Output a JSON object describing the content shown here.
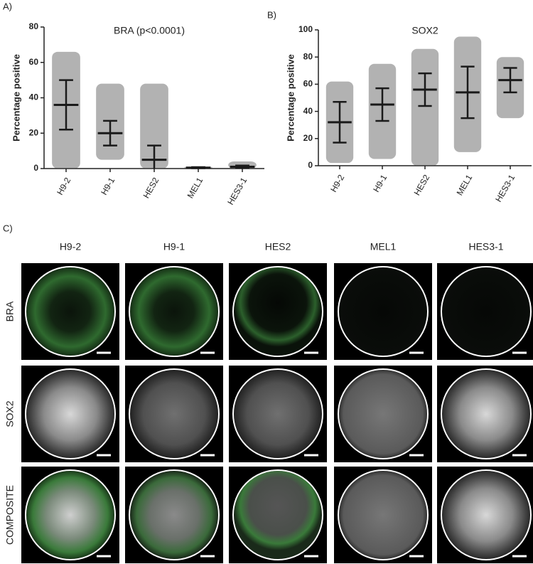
{
  "panels": {
    "a": "A)",
    "b": "B)",
    "c": "C)"
  },
  "chart_data": [
    {
      "type": "dot_plot",
      "title": "BRA (p<0.0001)",
      "y_label": "Percentage positive",
      "categories": [
        "H9-2",
        "H9-1",
        "HES2",
        "MEL1",
        "HES3-1"
      ],
      "values": [
        36,
        20,
        5,
        0.5,
        1
      ],
      "errors": [
        14,
        7,
        8,
        0.3,
        0.7
      ],
      "min": [
        0,
        5,
        0,
        0,
        0
      ],
      "max": [
        66,
        48,
        48,
        1,
        4
      ],
      "color": "#1a1a1a",
      "ylim": [
        0,
        80
      ],
      "yticks": [
        0,
        20,
        40,
        60,
        80
      ]
    },
    {
      "type": "dot_plot",
      "title": "SOX2",
      "y_label": "Percentage positive",
      "categories": [
        "H9-2",
        "H9-1",
        "HES2",
        "MEL1",
        "HES3-1"
      ],
      "values": [
        32,
        45,
        56,
        54,
        63
      ],
      "errors": [
        15,
        12,
        12,
        19,
        9
      ],
      "min": [
        2,
        5,
        0,
        10,
        35
      ],
      "max": [
        62,
        75,
        86,
        95,
        80
      ],
      "color": "#1a1a1a",
      "ylim": [
        0,
        100
      ],
      "yticks": [
        0,
        20,
        40,
        60,
        80,
        100
      ]
    }
  ],
  "panel_c": {
    "columns": [
      "H9-2",
      "H9-1",
      "HES2",
      "MEL1",
      "HES3-1"
    ],
    "rows": [
      "BRA",
      "SOX2",
      "COMPOSITE"
    ]
  }
}
